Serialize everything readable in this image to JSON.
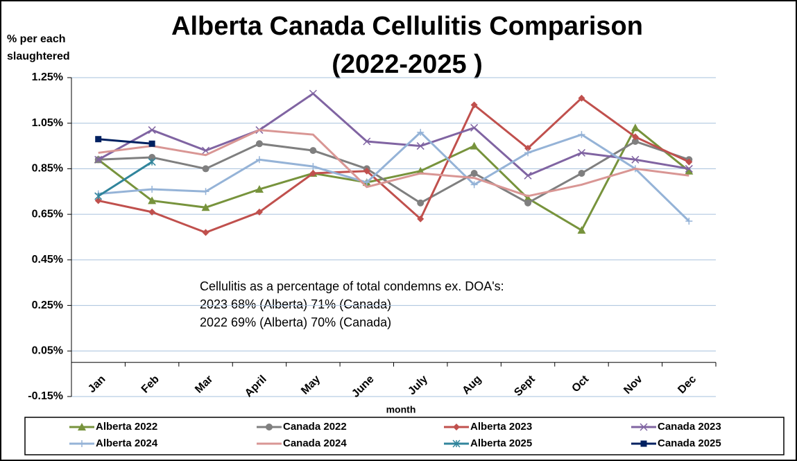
{
  "chart_data": {
    "type": "line",
    "title": [
      "Alberta Canada Cellulitis Comparison",
      "(2022-2025 )"
    ],
    "y_label": [
      "% per each",
      "slaughtered"
    ],
    "x_label": "month",
    "annotation": [
      "Cellulitis as a percentage of total condemns ex. DOA's:",
      "2023 68% (Alberta) 71% (Canada)",
      "2022 69% (Alberta) 70% (Canada)"
    ],
    "categories": [
      "Jan",
      "Feb",
      "Mar",
      "April",
      "May",
      "June",
      "July",
      "Aug",
      "Sept",
      "Oct",
      "Nov",
      "Dec"
    ],
    "ylim": [
      -0.15,
      1.25
    ],
    "yticks": [
      {
        "value": 1.25,
        "label": "1.25%"
      },
      {
        "value": 1.05,
        "label": "1.05%"
      },
      {
        "value": 0.85,
        "label": "0.85%"
      },
      {
        "value": 0.65,
        "label": "0.65%"
      },
      {
        "value": 0.45,
        "label": "0.45%"
      },
      {
        "value": 0.25,
        "label": "0.25%"
      },
      {
        "value": 0.05,
        "label": "0.05%"
      },
      {
        "value": -0.15,
        "label": "-0.15%"
      }
    ],
    "grid": true,
    "legend": "bottom",
    "series": [
      {
        "name": "Alberta 2022",
        "color": "#77933c",
        "marker": "triangle",
        "values": [
          0.89,
          0.71,
          0.68,
          0.76,
          0.83,
          0.79,
          0.84,
          0.95,
          0.72,
          0.58,
          1.03,
          0.84
        ]
      },
      {
        "name": "Canada 2022",
        "color": "#7f7f7f",
        "marker": "circle",
        "values": [
          0.89,
          0.9,
          0.85,
          0.96,
          0.93,
          0.85,
          0.7,
          0.83,
          0.7,
          0.83,
          0.97,
          0.89
        ]
      },
      {
        "name": "Alberta 2023",
        "color": "#c0504d",
        "marker": "diamond",
        "values": [
          0.71,
          0.66,
          0.57,
          0.66,
          0.83,
          0.84,
          0.63,
          1.13,
          0.94,
          1.16,
          0.99,
          0.88
        ]
      },
      {
        "name": "Canada 2023",
        "color": "#8064a2",
        "marker": "x",
        "values": [
          0.89,
          1.02,
          0.93,
          1.02,
          1.18,
          0.97,
          0.95,
          1.03,
          0.82,
          0.92,
          0.89,
          0.85
        ]
      },
      {
        "name": "Alberta 2024",
        "color": "#95b3d7",
        "marker": "plus",
        "values": [
          0.74,
          0.76,
          0.75,
          0.89,
          0.86,
          0.79,
          1.01,
          0.78,
          0.92,
          1.0,
          0.85,
          0.62
        ]
      },
      {
        "name": "Canada 2024",
        "color": "#d99694",
        "marker": "none",
        "values": [
          0.92,
          0.95,
          0.91,
          1.02,
          1.0,
          0.77,
          0.83,
          0.81,
          0.73,
          0.78,
          0.85,
          0.82
        ]
      },
      {
        "name": "Alberta 2025",
        "color": "#31859c",
        "marker": "star",
        "values": [
          0.73,
          0.88,
          null,
          null,
          null,
          null,
          null,
          null,
          null,
          null,
          null,
          null
        ]
      },
      {
        "name": "Canada 2025",
        "color": "#002060",
        "marker": "square",
        "values": [
          0.98,
          0.96,
          null,
          null,
          null,
          null,
          null,
          null,
          null,
          null,
          null,
          null
        ]
      }
    ]
  }
}
